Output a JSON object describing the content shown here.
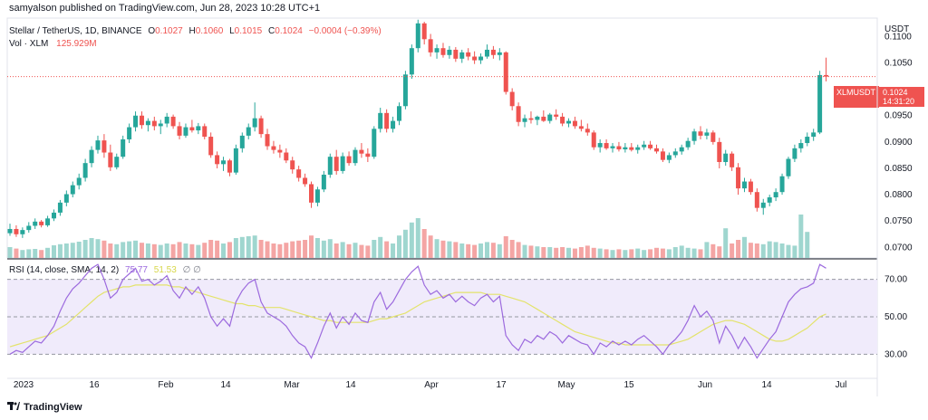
{
  "header": {
    "published": "samyalson published on TradingView.com, Jun 28, 2023 10:28 UTC+1"
  },
  "legend": {
    "symbol": "Stellar / TetherUS, 1D, BINANCE",
    "o_label": "O",
    "o": "0.1027",
    "h_label": "H",
    "h": "0.1060",
    "l_label": "L",
    "l": "0.1015",
    "c_label": "C",
    "c": "0.1024",
    "change": "−0.0004 (−0.39%)",
    "vol_label": "Vol · XLM",
    "vol": "125.929M"
  },
  "rsi_legend": {
    "label": "RSI (14, close, SMA, 14, 2)",
    "rsi": "75.77",
    "sma": "51.53",
    "extras": "∅ ∅"
  },
  "price_axis": {
    "currency": "USDT",
    "ticks": [
      "0.1100",
      "0.1050",
      "0.0950",
      "0.0900",
      "0.0850",
      "0.0800",
      "0.0750",
      "0.0700"
    ]
  },
  "rsi_axis": {
    "ticks": [
      "70.00",
      "50.00",
      "30.00"
    ]
  },
  "time_axis": {
    "ticks": [
      "2023",
      "16",
      "Feb",
      "14",
      "Mar",
      "14",
      "Apr",
      "17",
      "May",
      "15",
      "Jun",
      "14",
      "Jul"
    ]
  },
  "tags": {
    "symbol": "XLMUSDT",
    "price": "0.1024",
    "countdown": "14:31:20"
  },
  "footer": {
    "brand": "TradingView"
  },
  "colors": {
    "up": "#26a69a",
    "down": "#ef5350",
    "rsi": "#9c6ade",
    "rsi_sma": "#e3e36b",
    "band": "#f0ebfb"
  },
  "chart_data": {
    "type": "candlestick",
    "price_range": [
      0.068,
      0.1135
    ],
    "rsi_range": [
      20,
      80
    ],
    "rsi_levels": [
      70,
      50,
      30
    ],
    "candles": [
      [
        0.0727,
        0.0745,
        0.0722,
        0.0735
      ],
      [
        0.0735,
        0.0742,
        0.072,
        0.0725
      ],
      [
        0.0725,
        0.0738,
        0.0718,
        0.0733
      ],
      [
        0.0733,
        0.0748,
        0.0728,
        0.0741
      ],
      [
        0.0741,
        0.0755,
        0.0735,
        0.0749
      ],
      [
        0.0749,
        0.0752,
        0.0738,
        0.0742
      ],
      [
        0.0742,
        0.076,
        0.0739,
        0.0755
      ],
      [
        0.0755,
        0.0772,
        0.075,
        0.0766
      ],
      [
        0.0766,
        0.079,
        0.076,
        0.0785
      ],
      [
        0.0785,
        0.0808,
        0.0778,
        0.0801
      ],
      [
        0.0801,
        0.0825,
        0.0795,
        0.0818
      ],
      [
        0.0818,
        0.084,
        0.081,
        0.0832
      ],
      [
        0.0832,
        0.0868,
        0.0825,
        0.086
      ],
      [
        0.086,
        0.0892,
        0.0852,
        0.0885
      ],
      [
        0.0885,
        0.0912,
        0.0878,
        0.0903
      ],
      [
        0.0903,
        0.0915,
        0.087,
        0.088
      ],
      [
        0.088,
        0.0895,
        0.0845,
        0.0852
      ],
      [
        0.0852,
        0.0878,
        0.0848,
        0.0872
      ],
      [
        0.0872,
        0.0912,
        0.0868,
        0.0905
      ],
      [
        0.0905,
        0.0935,
        0.0898,
        0.0928
      ],
      [
        0.0928,
        0.0958,
        0.092,
        0.095
      ],
      [
        0.095,
        0.0958,
        0.0925,
        0.0932
      ],
      [
        0.0932,
        0.0945,
        0.092,
        0.094
      ],
      [
        0.094,
        0.0948,
        0.0922,
        0.093
      ],
      [
        0.093,
        0.0942,
        0.0915,
        0.0935
      ],
      [
        0.0935,
        0.0955,
        0.0928,
        0.0948
      ],
      [
        0.0948,
        0.0952,
        0.0925,
        0.093
      ],
      [
        0.093,
        0.0938,
        0.0905,
        0.0912
      ],
      [
        0.0912,
        0.0935,
        0.0908,
        0.0928
      ],
      [
        0.0928,
        0.0942,
        0.0918,
        0.0922
      ],
      [
        0.0922,
        0.0936,
        0.0915,
        0.093
      ],
      [
        0.093,
        0.0935,
        0.0905,
        0.091
      ],
      [
        0.091,
        0.0918,
        0.087,
        0.0875
      ],
      [
        0.0875,
        0.0882,
        0.085,
        0.0858
      ],
      [
        0.0858,
        0.0872,
        0.0845,
        0.0865
      ],
      [
        0.0865,
        0.0868,
        0.0835,
        0.0842
      ],
      [
        0.0842,
        0.0895,
        0.0838,
        0.0888
      ],
      [
        0.0888,
        0.0918,
        0.088,
        0.0912
      ],
      [
        0.0912,
        0.0935,
        0.0905,
        0.0928
      ],
      [
        0.0928,
        0.0975,
        0.092,
        0.0945
      ],
      [
        0.0945,
        0.095,
        0.0908,
        0.0915
      ],
      [
        0.0915,
        0.0925,
        0.0885,
        0.0892
      ],
      [
        0.0892,
        0.0902,
        0.0878,
        0.0885
      ],
      [
        0.0885,
        0.0895,
        0.087,
        0.088
      ],
      [
        0.088,
        0.0888,
        0.086,
        0.0865
      ],
      [
        0.0865,
        0.0872,
        0.084,
        0.0848
      ],
      [
        0.0848,
        0.0855,
        0.0825,
        0.0832
      ],
      [
        0.0832,
        0.084,
        0.0815,
        0.082
      ],
      [
        0.082,
        0.0825,
        0.0775,
        0.0785
      ],
      [
        0.0785,
        0.0815,
        0.0778,
        0.081
      ],
      [
        0.081,
        0.0845,
        0.0805,
        0.0838
      ],
      [
        0.0838,
        0.0878,
        0.0832,
        0.0872
      ],
      [
        0.0872,
        0.0885,
        0.0838,
        0.0845
      ],
      [
        0.0845,
        0.088,
        0.084,
        0.0873
      ],
      [
        0.0873,
        0.0882,
        0.0855,
        0.086
      ],
      [
        0.086,
        0.089,
        0.0855,
        0.0885
      ],
      [
        0.0885,
        0.0898,
        0.087,
        0.0878
      ],
      [
        0.0878,
        0.0888,
        0.0862,
        0.0872
      ],
      [
        0.0872,
        0.093,
        0.0868,
        0.0925
      ],
      [
        0.0925,
        0.0965,
        0.0918,
        0.0955
      ],
      [
        0.0955,
        0.0962,
        0.0918,
        0.0925
      ],
      [
        0.0925,
        0.0948,
        0.0918,
        0.094
      ],
      [
        0.094,
        0.0975,
        0.0932,
        0.0968
      ],
      [
        0.0968,
        0.1035,
        0.0962,
        0.1028
      ],
      [
        0.1028,
        0.1085,
        0.102,
        0.1078
      ],
      [
        0.1078,
        0.1132,
        0.107,
        0.1125
      ],
      [
        0.1125,
        0.1128,
        0.1085,
        0.1095
      ],
      [
        0.1095,
        0.1105,
        0.1062,
        0.107
      ],
      [
        0.107,
        0.1085,
        0.1058,
        0.1078
      ],
      [
        0.1078,
        0.1088,
        0.106,
        0.1065
      ],
      [
        0.1065,
        0.1082,
        0.1058,
        0.1075
      ],
      [
        0.1075,
        0.108,
        0.1052,
        0.1058
      ],
      [
        0.1058,
        0.1075,
        0.105,
        0.107
      ],
      [
        0.107,
        0.1078,
        0.1055,
        0.1062
      ],
      [
        0.1062,
        0.1072,
        0.1048,
        0.1055
      ],
      [
        0.1055,
        0.1068,
        0.1048,
        0.1062
      ],
      [
        0.1062,
        0.1085,
        0.1058,
        0.1075
      ],
      [
        0.1075,
        0.1082,
        0.1058,
        0.1065
      ],
      [
        0.1065,
        0.1078,
        0.1055,
        0.107
      ],
      [
        0.107,
        0.1072,
        0.099,
        0.0995
      ],
      [
        0.0995,
        0.1002,
        0.096,
        0.0968
      ],
      [
        0.0968,
        0.0975,
        0.093,
        0.0938
      ],
      [
        0.0938,
        0.0952,
        0.0928,
        0.0945
      ],
      [
        0.0945,
        0.0958,
        0.0935,
        0.0942
      ],
      [
        0.0942,
        0.095,
        0.0932,
        0.0948
      ],
      [
        0.0948,
        0.096,
        0.0938,
        0.094
      ],
      [
        0.094,
        0.0955,
        0.0935,
        0.0952
      ],
      [
        0.0952,
        0.0962,
        0.0942,
        0.0948
      ],
      [
        0.0948,
        0.0955,
        0.093,
        0.0935
      ],
      [
        0.0935,
        0.0945,
        0.0928,
        0.094
      ],
      [
        0.094,
        0.0948,
        0.0925,
        0.093
      ],
      [
        0.093,
        0.0942,
        0.092,
        0.0925
      ],
      [
        0.0925,
        0.0935,
        0.0912,
        0.0918
      ],
      [
        0.0918,
        0.0922,
        0.0885,
        0.089
      ],
      [
        0.089,
        0.0905,
        0.088,
        0.0898
      ],
      [
        0.0898,
        0.0905,
        0.0885,
        0.0888
      ],
      [
        0.0888,
        0.0898,
        0.088,
        0.0892
      ],
      [
        0.0892,
        0.09,
        0.0882,
        0.0886
      ],
      [
        0.0886,
        0.0898,
        0.088,
        0.089
      ],
      [
        0.089,
        0.0898,
        0.0882,
        0.0885
      ],
      [
        0.0885,
        0.0895,
        0.0878,
        0.089
      ],
      [
        0.089,
        0.0902,
        0.0885,
        0.0895
      ],
      [
        0.0895,
        0.0902,
        0.0885,
        0.0888
      ],
      [
        0.0888,
        0.0895,
        0.0878,
        0.0882
      ],
      [
        0.0882,
        0.0888,
        0.0862,
        0.0866
      ],
      [
        0.0866,
        0.088,
        0.086,
        0.0875
      ],
      [
        0.0875,
        0.0888,
        0.087,
        0.0882
      ],
      [
        0.0882,
        0.0895,
        0.0876,
        0.089
      ],
      [
        0.089,
        0.0908,
        0.0885,
        0.0902
      ],
      [
        0.0902,
        0.0925,
        0.0895,
        0.092
      ],
      [
        0.092,
        0.093,
        0.0905,
        0.0912
      ],
      [
        0.0912,
        0.0925,
        0.0905,
        0.0918
      ],
      [
        0.0918,
        0.0922,
        0.0895,
        0.09
      ],
      [
        0.09,
        0.0908,
        0.085,
        0.0862
      ],
      [
        0.0862,
        0.0885,
        0.0855,
        0.0878
      ],
      [
        0.0878,
        0.0882,
        0.0845,
        0.0852
      ],
      [
        0.0852,
        0.086,
        0.08,
        0.0812
      ],
      [
        0.0812,
        0.0832,
        0.0805,
        0.0825
      ],
      [
        0.0825,
        0.083,
        0.08,
        0.0805
      ],
      [
        0.0805,
        0.0812,
        0.0768,
        0.0775
      ],
      [
        0.0775,
        0.0792,
        0.0762,
        0.0785
      ],
      [
        0.0785,
        0.08,
        0.0778,
        0.0795
      ],
      [
        0.0795,
        0.0812,
        0.0788,
        0.0805
      ],
      [
        0.0805,
        0.084,
        0.08,
        0.0835
      ],
      [
        0.0835,
        0.0872,
        0.083,
        0.0868
      ],
      [
        0.0868,
        0.0895,
        0.0862,
        0.0888
      ],
      [
        0.0888,
        0.0905,
        0.088,
        0.0898
      ],
      [
        0.0898,
        0.0918,
        0.0892,
        0.091
      ],
      [
        0.091,
        0.0925,
        0.0902,
        0.0918
      ],
      [
        0.0918,
        0.1035,
        0.0915,
        0.1027
      ],
      [
        0.1027,
        0.106,
        0.1015,
        0.1024
      ]
    ],
    "volume": [
      30,
      26,
      22,
      24,
      25,
      22,
      28,
      35,
      38,
      40,
      42,
      45,
      50,
      55,
      52,
      48,
      40,
      38,
      44,
      46,
      48,
      42,
      40,
      38,
      36,
      40,
      38,
      44,
      40,
      38,
      36,
      42,
      50,
      48,
      40,
      44,
      55,
      58,
      60,
      62,
      50,
      46,
      40,
      38,
      42,
      46,
      48,
      50,
      62,
      55,
      48,
      52,
      40,
      44,
      38,
      42,
      36,
      34,
      50,
      58,
      46,
      40,
      62,
      78,
      98,
      110,
      80,
      62,
      52,
      48,
      46,
      44,
      40,
      38,
      36,
      40,
      44,
      42,
      38,
      60,
      50,
      44,
      36,
      34,
      32,
      30,
      30,
      28,
      30,
      28,
      26,
      30,
      34,
      28,
      26,
      24,
      22,
      24,
      22,
      24,
      26,
      22,
      24,
      28,
      26,
      24,
      30,
      34,
      28,
      26,
      24,
      44,
      38,
      32,
      82,
      40,
      50,
      58,
      42,
      40,
      38,
      46,
      44,
      40,
      36,
      34,
      120,
      72
    ],
    "rsi": [
      30,
      32,
      31,
      34,
      37,
      36,
      40,
      45,
      53,
      60,
      65,
      68,
      72,
      76,
      78,
      70,
      60,
      63,
      70,
      73,
      76,
      69,
      70,
      67,
      69,
      72,
      64,
      60,
      66,
      62,
      66,
      60,
      50,
      45,
      49,
      45,
      58,
      64,
      68,
      70,
      58,
      52,
      50,
      48,
      45,
      40,
      36,
      34,
      28,
      36,
      45,
      52,
      44,
      50,
      46,
      52,
      48,
      47,
      58,
      63,
      54,
      58,
      64,
      70,
      74,
      77,
      67,
      62,
      64,
      60,
      62,
      58,
      61,
      58,
      56,
      60,
      62,
      58,
      61,
      40,
      35,
      32,
      38,
      36,
      40,
      38,
      42,
      40,
      36,
      40,
      38,
      36,
      35,
      30,
      36,
      34,
      37,
      35,
      37,
      35,
      38,
      40,
      37,
      34,
      30,
      35,
      38,
      42,
      48,
      56,
      50,
      53,
      48,
      36,
      45,
      40,
      33,
      39,
      34,
      28,
      33,
      38,
      42,
      50,
      58,
      62,
      65,
      66,
      68,
      78,
      76
    ],
    "rsi_sma": [
      34,
      35,
      36,
      37,
      38,
      39,
      40,
      42,
      44,
      46,
      49,
      52,
      55,
      58,
      61,
      63,
      64,
      65,
      66,
      66,
      67,
      67,
      67,
      67,
      67,
      67,
      66,
      66,
      65,
      64,
      63,
      62,
      61,
      60,
      59,
      58,
      57,
      57,
      56,
      56,
      55,
      55,
      55,
      55,
      54,
      53,
      52,
      51,
      50,
      49,
      48,
      48,
      47,
      47,
      47,
      47,
      47,
      47,
      48,
      49,
      49,
      50,
      51,
      52,
      54,
      56,
      58,
      59,
      60,
      61,
      62,
      63,
      63,
      63,
      63,
      63,
      62,
      62,
      62,
      61,
      60,
      59,
      58,
      56,
      54,
      52,
      50,
      48,
      46,
      44,
      42,
      41,
      40,
      39,
      38,
      37,
      36,
      36,
      35,
      35,
      35,
      35,
      35,
      35,
      35,
      35,
      36,
      37,
      38,
      40,
      42,
      44,
      46,
      47,
      48,
      48,
      47,
      46,
      44,
      42,
      40,
      38,
      37,
      37,
      38,
      40,
      42,
      44,
      47,
      50,
      51.5
    ]
  }
}
